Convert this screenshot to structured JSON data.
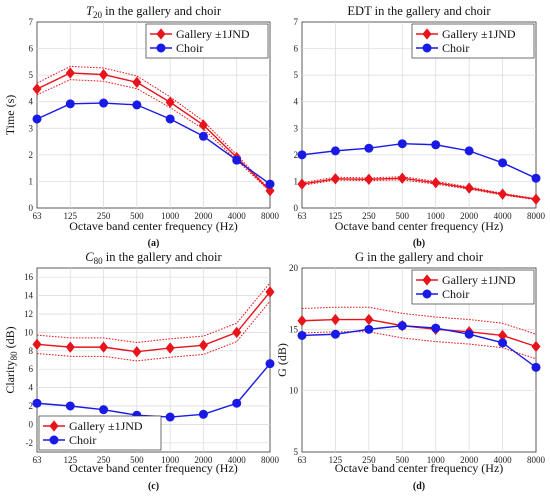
{
  "colors": {
    "gallery": "#e8141c",
    "choir": "#1a1ae6"
  },
  "chart_data": [
    {
      "type": "line",
      "panel_label": "(a)",
      "title": "T20 in the gallery and choir",
      "title_main": "T",
      "title_sub": "20",
      "title_rest": " in the gallery and choir",
      "xlabel": "Octave band center frequency (Hz)",
      "ylabel": "Time (s)",
      "ylabel_main": "Time (s)",
      "ylabel_sub": "",
      "x_ticks": [
        "63",
        "125",
        "250",
        "500",
        "1000",
        "2000",
        "4000",
        "8000"
      ],
      "ylim": [
        0,
        7
      ],
      "y_ticks": [
        0,
        1,
        2,
        3,
        4,
        5,
        6,
        7
      ],
      "legend_position": "top-right",
      "series": [
        {
          "name": "Gallery ±1JND",
          "marker": "diamond",
          "values": [
            4.48,
            5.08,
            5.02,
            4.73,
            3.98,
            3.12,
            1.9,
            0.65
          ],
          "band_upper": [
            4.7,
            5.33,
            5.27,
            4.97,
            4.18,
            3.27,
            2.0,
            0.68
          ],
          "band_lower": [
            4.26,
            4.83,
            4.77,
            4.49,
            3.78,
            2.97,
            1.8,
            0.62
          ]
        },
        {
          "name": "Choir",
          "marker": "circle",
          "values": [
            3.35,
            3.92,
            3.95,
            3.88,
            3.35,
            2.7,
            1.8,
            0.9
          ]
        }
      ]
    },
    {
      "type": "line",
      "panel_label": "(b)",
      "title": "EDT in the gallery and choir",
      "title_main": "EDT in the gallery and choir",
      "title_sub": "",
      "title_rest": "",
      "xlabel": "Octave band center frequency (Hz)",
      "ylabel": "",
      "ylabel_main": "",
      "ylabel_sub": "",
      "x_ticks": [
        "63",
        "125",
        "250",
        "500",
        "1000",
        "2000",
        "4000",
        "8000"
      ],
      "ylim": [
        0,
        7
      ],
      "y_ticks": [
        0,
        1,
        2,
        3,
        4,
        5,
        6,
        7
      ],
      "legend_position": "top-right",
      "series": [
        {
          "name": "Gallery ±1JND",
          "marker": "diamond",
          "values": [
            0.9,
            1.1,
            1.08,
            1.12,
            0.95,
            0.75,
            0.52,
            0.33
          ],
          "band_upper": [
            0.95,
            1.16,
            1.13,
            1.18,
            1.0,
            0.79,
            0.55,
            0.35
          ],
          "band_lower": [
            0.85,
            1.05,
            1.03,
            1.06,
            0.9,
            0.71,
            0.49,
            0.31
          ]
        },
        {
          "name": "Choir",
          "marker": "circle",
          "values": [
            2.0,
            2.15,
            2.25,
            2.42,
            2.38,
            2.15,
            1.7,
            1.12
          ]
        }
      ]
    },
    {
      "type": "line",
      "panel_label": "(c)",
      "title": "C80 in the gallery and choir",
      "title_main": "C",
      "title_sub": "80",
      "title_rest": " in the gallery and choir",
      "xlabel": "Octave band center frequency (Hz)",
      "ylabel": "Clarity80 (dB)",
      "ylabel_main": "Clarity",
      "ylabel_sub": "80",
      "ylabel_rest": " (dB)",
      "x_ticks": [
        "63",
        "125",
        "250",
        "500",
        "1000",
        "2000",
        "4000",
        "8000"
      ],
      "ylim": [
        -3,
        17
      ],
      "y_ticks": [
        -2,
        0,
        2,
        4,
        6,
        8,
        10,
        12,
        14,
        16
      ],
      "legend_position": "bottom-left",
      "series": [
        {
          "name": "Gallery ±1JND",
          "marker": "diamond",
          "values": [
            8.7,
            8.4,
            8.4,
            7.9,
            8.3,
            8.6,
            10.0,
            14.4
          ],
          "band_upper": [
            9.7,
            9.4,
            9.4,
            8.9,
            9.3,
            9.6,
            11.0,
            15.4
          ],
          "band_lower": [
            7.7,
            7.4,
            7.4,
            6.9,
            7.3,
            7.6,
            9.0,
            13.4
          ]
        },
        {
          "name": "Choir",
          "marker": "circle",
          "values": [
            2.3,
            2.0,
            1.6,
            1.0,
            0.8,
            1.1,
            2.3,
            6.6
          ]
        }
      ]
    },
    {
      "type": "line",
      "panel_label": "(d)",
      "title": "G in the gallery and choir",
      "title_main": "G in the gallery and choir",
      "title_sub": "",
      "title_rest": "",
      "xlabel": "Octave band center frequency (Hz)",
      "ylabel": "G (dB)",
      "ylabel_main": "G (dB)",
      "ylabel_sub": "",
      "x_ticks": [
        "63",
        "125",
        "250",
        "500",
        "1000",
        "2000",
        "4000",
        "8000"
      ],
      "ylim": [
        5,
        20
      ],
      "y_ticks": [
        5,
        10,
        15,
        20
      ],
      "legend_position": "top-right",
      "series": [
        {
          "name": "Gallery ±1JND",
          "marker": "diamond",
          "values": [
            15.7,
            15.8,
            15.8,
            15.3,
            15.0,
            14.8,
            14.5,
            13.6
          ],
          "band_upper": [
            16.7,
            16.8,
            16.8,
            16.3,
            16.0,
            15.8,
            15.5,
            14.6
          ],
          "band_lower": [
            14.7,
            14.8,
            14.8,
            14.3,
            14.0,
            13.8,
            13.5,
            12.6
          ]
        },
        {
          "name": "Choir",
          "marker": "circle",
          "values": [
            14.5,
            14.6,
            15.0,
            15.3,
            15.1,
            14.6,
            13.9,
            11.9
          ]
        }
      ]
    }
  ]
}
